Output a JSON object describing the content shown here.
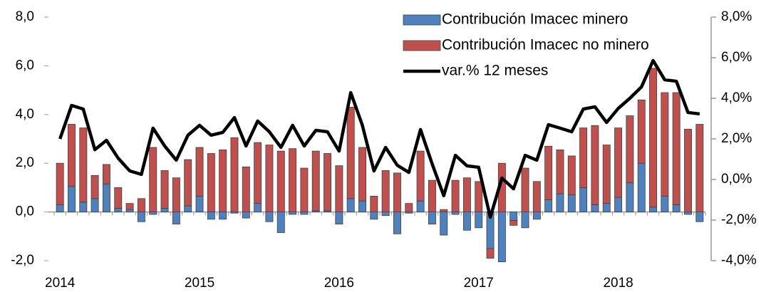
{
  "chart_data": {
    "type": "stacked-bar-line",
    "categories": [
      "2014",
      null,
      null,
      null,
      null,
      null,
      null,
      null,
      null,
      null,
      null,
      null,
      "2015",
      null,
      null,
      null,
      null,
      null,
      null,
      null,
      null,
      null,
      null,
      null,
      "2016",
      null,
      null,
      null,
      null,
      null,
      null,
      null,
      null,
      null,
      null,
      null,
      "2017",
      null,
      null,
      null,
      null,
      null,
      null,
      null,
      null,
      null,
      null,
      null,
      "2018",
      null,
      null,
      null,
      null,
      null,
      null,
      null
    ],
    "series": [
      {
        "name": "Contribución Imacec minero",
        "color": "#4f81bd",
        "kind": "bar",
        "values": [
          0.3,
          1.05,
          0.4,
          0.55,
          1.15,
          0.15,
          0.1,
          -0.4,
          -0.1,
          0.15,
          -0.5,
          0.25,
          0.65,
          -0.3,
          -0.3,
          -0.05,
          -0.25,
          0.35,
          -0.4,
          -0.85,
          -0.1,
          -0.1,
          0.05,
          0.05,
          -0.5,
          0.55,
          0.45,
          -0.3,
          -0.15,
          -0.9,
          -0.05,
          0.45,
          -0.5,
          -0.95,
          -0.1,
          -0.75,
          -0.65,
          -1.5,
          -2.05,
          -0.35,
          -0.65,
          -0.3,
          0.5,
          0.75,
          0.7,
          1.0,
          0.3,
          0.35,
          0.6,
          1.2,
          2.0,
          0.2,
          0.65,
          0.3,
          -0.1,
          -0.4
        ]
      },
      {
        "name": "Contribución Imacec no minero",
        "color": "#c0504d",
        "kind": "bar",
        "values": [
          1.7,
          2.55,
          3.05,
          0.95,
          0.8,
          0.85,
          0.25,
          0.55,
          2.65,
          1.55,
          1.4,
          1.9,
          2.0,
          2.4,
          2.55,
          3.05,
          1.85,
          2.5,
          2.75,
          2.5,
          2.6,
          1.8,
          2.45,
          2.35,
          1.9,
          3.75,
          2.2,
          0.65,
          1.7,
          1.6,
          0.35,
          2.05,
          1.3,
          0.1,
          1.3,
          1.4,
          1.25,
          -0.4,
          2.0,
          -0.2,
          1.8,
          1.25,
          2.2,
          1.8,
          1.6,
          2.45,
          3.25,
          2.4,
          2.85,
          2.75,
          2.6,
          5.7,
          4.25,
          4.6,
          3.4,
          3.6
        ]
      },
      {
        "name": "var.% 12 meses",
        "color": "#000000",
        "kind": "line",
        "axis": "y2",
        "values": [
          2.0,
          3.65,
          3.47,
          1.47,
          1.93,
          1.05,
          0.42,
          0.25,
          2.53,
          1.65,
          0.95,
          2.18,
          2.67,
          2.18,
          2.32,
          3.05,
          1.65,
          2.88,
          2.35,
          1.58,
          2.67,
          1.65,
          2.42,
          2.35,
          1.4,
          4.28,
          2.67,
          0.42,
          1.58,
          0.7,
          0.35,
          2.46,
          0.77,
          -0.8,
          1.19,
          0.67,
          0.6,
          -1.86,
          0.07,
          -0.46,
          1.19,
          0.95,
          2.7,
          2.53,
          2.35,
          3.47,
          3.58,
          2.81,
          3.5,
          4.0,
          4.56,
          5.86,
          4.91,
          4.84,
          3.3,
          3.23
        ]
      }
    ],
    "ylim": [
      -2,
      8
    ],
    "yticks": [
      {
        "value": -2,
        "label": "-2,0"
      },
      {
        "value": 0,
        "label": "0,0"
      },
      {
        "value": 2,
        "label": "2,0"
      },
      {
        "value": 4,
        "label": "4,0"
      },
      {
        "value": 6,
        "label": "6,0"
      },
      {
        "value": 8,
        "label": "8,0"
      }
    ],
    "y2lim": [
      -4,
      8
    ],
    "y2ticks": [
      {
        "value": -4,
        "label": "-4,0%"
      },
      {
        "value": -2,
        "label": "-2,0%"
      },
      {
        "value": 0,
        "label": "0,0%"
      },
      {
        "value": 2,
        "label": "2,0%"
      },
      {
        "value": 4,
        "label": "4,0%"
      },
      {
        "value": 6,
        "label": "6,0%"
      },
      {
        "value": 8,
        "label": "8,0%"
      }
    ],
    "legend": "top-right"
  }
}
